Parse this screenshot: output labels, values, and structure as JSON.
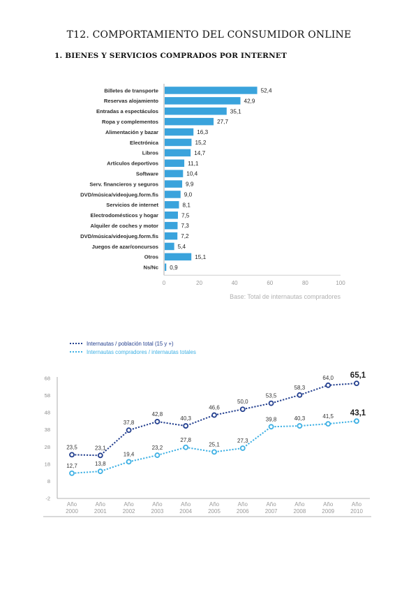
{
  "document": {
    "title": "T12. COMPORTAMIENTO DEL CONSUMIDOR ONLINE",
    "section_heading": "1.  BIENES Y SERVICIOS COMPRADOS POR INTERNET"
  },
  "chart_data": [
    {
      "type": "bar",
      "orientation": "horizontal",
      "categories": [
        "Billetes de transporte",
        "Reservas alojamiento",
        "Entradas a espectáculos",
        "Ropa y complementos",
        "Alimentación y bazar",
        "Electrónica",
        "Libros",
        "Artículos deportivos",
        "Software",
        "Serv. financieros y seguros",
        "DVD/música/videojueg.form.fis",
        "Servicios de internet",
        "Electrodomésticos  y hogar",
        "Alquiler de coches y motor",
        "DVD/música/videojueg.form.fis",
        "Juegos de azar/concursos",
        "Otros",
        "Ns/Nc"
      ],
      "values": [
        52.4,
        42.9,
        35.1,
        27.7,
        16.3,
        15.2,
        14.7,
        11.1,
        10.4,
        9.9,
        9.0,
        8.1,
        7.5,
        7.3,
        7.2,
        5.4,
        15.1,
        0.9
      ],
      "value_labels": [
        "52,4",
        "42,9",
        "35,1",
        "27,7",
        "16,3",
        "15,2",
        "14,7",
        "11,1",
        "10,4",
        "9,9",
        "9,0",
        "8,1",
        "7,5",
        "7,3",
        "7,2",
        "5,4",
        "15,1",
        "0,9"
      ],
      "xlim": [
        0,
        100
      ],
      "xticks": [
        "0",
        "20",
        "40",
        "60",
        "80",
        "100"
      ],
      "note": "Base: Total de internautas compradores",
      "bar_color": "#3aa3dc"
    },
    {
      "type": "line",
      "x": [
        "Año 2000",
        "Año 2001",
        "Año 2002",
        "Año 2003",
        "Año 2004",
        "Año 2005",
        "Año 2006",
        "Año 2007",
        "Año 2008",
        "Año 2009",
        "Año 2010"
      ],
      "x_lines": [
        [
          "Año",
          "2000"
        ],
        [
          "Año",
          "2001"
        ],
        [
          "Año",
          "2002"
        ],
        [
          "Año",
          "2003"
        ],
        [
          "Año",
          "2004"
        ],
        [
          "Año",
          "2005"
        ],
        [
          "Año",
          "2006"
        ],
        [
          "Año",
          "2007"
        ],
        [
          "Año",
          "2008"
        ],
        [
          "Año",
          "2009"
        ],
        [
          "Año",
          "2010"
        ]
      ],
      "ylim": [
        -2,
        68
      ],
      "yticks": [
        "68",
        "58",
        "48",
        "38",
        "28",
        "18",
        "8",
        "-2"
      ],
      "series": [
        {
          "name": "Internautas / población total (15 y +)",
          "color": "#24408f",
          "values": [
            23.5,
            23.1,
            37.8,
            42.8,
            40.3,
            46.6,
            50.0,
            53.5,
            58.3,
            64.0,
            65.1
          ],
          "labels": [
            "23,5",
            "23,1",
            "37,8",
            "42,8",
            "40,3",
            "46,6",
            "50,0",
            "53,5",
            "58,3",
            "64,0",
            "65,1"
          ]
        },
        {
          "name": "Internautas compradores / internautas totales",
          "color": "#3eb0e4",
          "values": [
            12.7,
            13.8,
            19.4,
            23.2,
            27.8,
            25.1,
            27.3,
            39.8,
            40.3,
            41.5,
            43.1
          ],
          "labels": [
            "12,7",
            "13,8",
            "19,4",
            "23,2",
            "27,8",
            "25,1",
            "27,3",
            "39,8",
            "40,3",
            "41,5",
            "43,1"
          ]
        }
      ]
    }
  ]
}
